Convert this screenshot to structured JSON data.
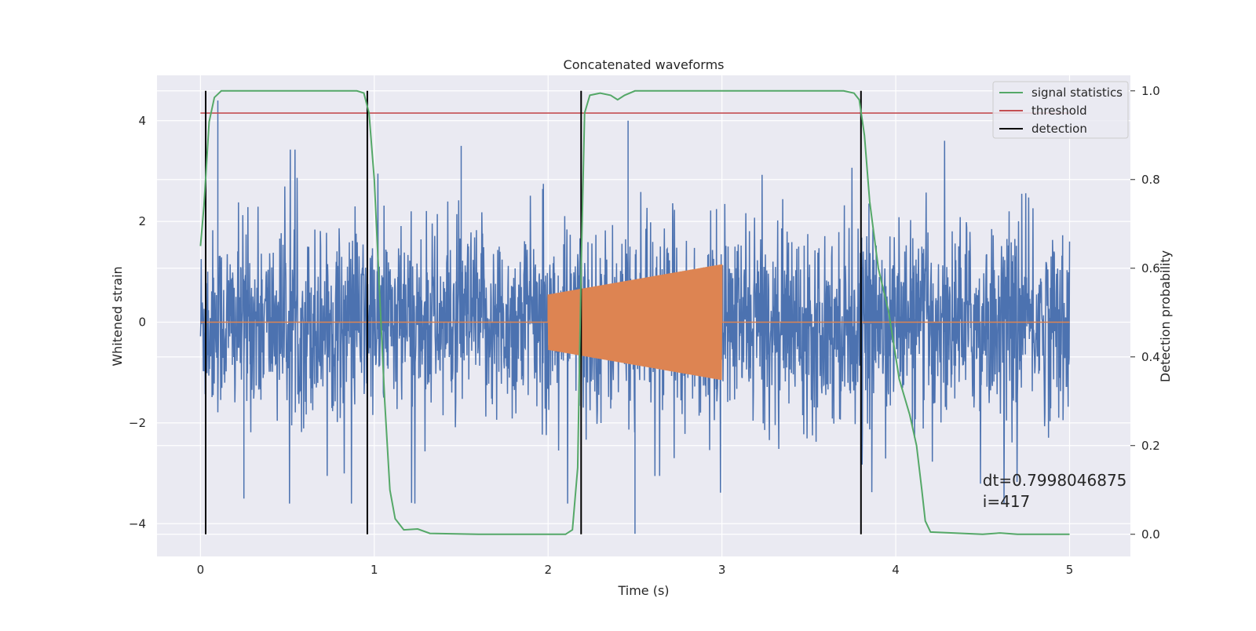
{
  "chart_data": {
    "type": "line",
    "title": "Concatenated waveforms",
    "xlabel": "Time (s)",
    "ylabel_left": "Whitened strain",
    "ylabel_right": "Detection probability",
    "xlim": [
      -0.25,
      5.35
    ],
    "ylim_left": [
      -4.65,
      4.9
    ],
    "ylim_right": [
      -0.05,
      1.035
    ],
    "x_ticks": [
      0,
      1,
      2,
      3,
      4,
      5
    ],
    "y_left_ticks": [
      -4,
      -2,
      0,
      2,
      4
    ],
    "y_right_ticks": [
      0.0,
      0.2,
      0.4,
      0.6,
      0.8,
      1.0
    ],
    "grid": true,
    "legend_position": "top-right",
    "colors": {
      "strain": "#4c72b0",
      "injected": "#dd8452",
      "signal_statistics": "#55a868",
      "threshold": "#c44e52",
      "detection": "#000000",
      "axes_background": "#eaeaf2",
      "grid": "#ffffff"
    },
    "series": [
      {
        "name": "signal statistics",
        "axis": "right",
        "color": "#55a868",
        "points": [
          [
            0.0,
            0.65
          ],
          [
            0.02,
            0.74
          ],
          [
            0.05,
            0.93
          ],
          [
            0.08,
            0.985
          ],
          [
            0.12,
            1.0
          ],
          [
            0.9,
            1.0
          ],
          [
            0.94,
            0.995
          ],
          [
            0.97,
            0.95
          ],
          [
            1.0,
            0.8
          ],
          [
            1.03,
            0.55
          ],
          [
            1.06,
            0.3
          ],
          [
            1.09,
            0.1
          ],
          [
            1.12,
            0.035
          ],
          [
            1.17,
            0.01
          ],
          [
            1.25,
            0.012
          ],
          [
            1.32,
            0.002
          ],
          [
            1.6,
            0.0
          ],
          [
            2.1,
            0.0
          ],
          [
            2.14,
            0.01
          ],
          [
            2.17,
            0.15
          ],
          [
            2.19,
            0.6
          ],
          [
            2.21,
            0.95
          ],
          [
            2.24,
            0.99
          ],
          [
            2.3,
            0.995
          ],
          [
            2.36,
            0.99
          ],
          [
            2.4,
            0.98
          ],
          [
            2.44,
            0.99
          ],
          [
            2.5,
            1.0
          ],
          [
            3.7,
            1.0
          ],
          [
            3.76,
            0.995
          ],
          [
            3.79,
            0.98
          ],
          [
            3.82,
            0.9
          ],
          [
            3.85,
            0.75
          ],
          [
            3.9,
            0.6
          ],
          [
            3.96,
            0.5
          ],
          [
            4.02,
            0.35
          ],
          [
            4.08,
            0.27
          ],
          [
            4.12,
            0.2
          ],
          [
            4.15,
            0.1
          ],
          [
            4.17,
            0.03
          ],
          [
            4.2,
            0.005
          ],
          [
            4.5,
            0.0
          ],
          [
            4.6,
            0.003
          ],
          [
            4.7,
            0.0
          ],
          [
            5.0,
            0.0
          ]
        ]
      },
      {
        "name": "threshold",
        "axis": "right",
        "color": "#c44e52",
        "value": 0.95,
        "x_range": [
          0,
          5
        ]
      },
      {
        "name": "detection",
        "axis": "right",
        "color": "#000000",
        "x_values": [
          0.03,
          0.96,
          2.19,
          3.8
        ]
      },
      {
        "name": "",
        "axis": "left",
        "color": "#4c72b0",
        "description": "whitened strain noise",
        "x_range": [
          0,
          5
        ],
        "std": 0.9,
        "peak_values": [
          [
            0.1,
            4.4
          ],
          [
            0.25,
            -3.5
          ],
          [
            1.5,
            3.5
          ],
          [
            2.5,
            -4.2
          ],
          [
            2.46,
            4.0
          ]
        ]
      },
      {
        "name": "",
        "axis": "left",
        "color": "#dd8452",
        "description": "injected chirp",
        "active_range": [
          2.0,
          3.0
        ],
        "amplitude_start": 0.55,
        "amplitude_end": 1.15
      }
    ],
    "annotations": [
      {
        "text": "dt=0.7998046875",
        "x": 4.5,
        "y": -3.25
      },
      {
        "text": " i=417",
        "x": 4.5,
        "y": -3.67
      }
    ]
  }
}
